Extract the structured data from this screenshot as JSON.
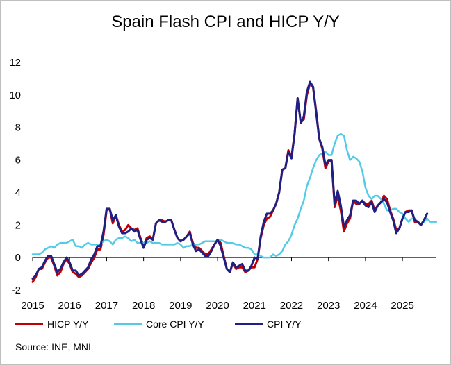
{
  "chart_data": {
    "type": "line",
    "title": "Spain Flash CPI and HICP Y/Y",
    "source": "Source: INE, MNI",
    "xlabel": "",
    "ylabel": "",
    "x_start": 2015.0,
    "x_step": 0.0833333,
    "xlim": [
      2015.0,
      2025.9
    ],
    "ylim": [
      -2,
      12
    ],
    "y_ticks": [
      "-2",
      "0",
      "2",
      "4",
      "6",
      "8",
      "10",
      "12"
    ],
    "x_ticks": [
      "2015",
      "2016",
      "2017",
      "2018",
      "2019",
      "2020",
      "2021",
      "2022",
      "2023",
      "2024",
      "2025"
    ],
    "grid": false,
    "legend_position": "bottom",
    "series": [
      {
        "name": "HICP Y/Y",
        "color": "#c00000",
        "values": [
          -1.5,
          -1.2,
          -0.7,
          -0.7,
          -0.3,
          0.0,
          0.0,
          -0.5,
          -1.1,
          -0.9,
          -0.4,
          -0.1,
          -0.4,
          -0.9,
          -1.0,
          -1.2,
          -1.1,
          -0.9,
          -0.7,
          -0.3,
          0.0,
          0.5,
          0.5,
          1.4,
          2.9,
          3.0,
          2.1,
          2.6,
          2.0,
          1.6,
          1.7,
          2.0,
          1.8,
          1.7,
          1.8,
          1.2,
          0.7,
          1.2,
          1.3,
          1.1,
          2.1,
          2.3,
          2.3,
          2.2,
          2.3,
          2.3,
          1.7,
          1.2,
          1.0,
          1.1,
          1.3,
          1.6,
          0.9,
          0.6,
          0.6,
          0.4,
          0.2,
          0.2,
          0.5,
          0.8,
          1.1,
          0.9,
          0.1,
          -0.7,
          -0.9,
          -0.3,
          -0.7,
          -0.6,
          -0.6,
          -0.9,
          -0.8,
          -0.6,
          -0.6,
          -0.1,
          1.2,
          2.0,
          2.4,
          2.5,
          2.9,
          3.3,
          4.0,
          5.4,
          5.5,
          6.6,
          6.2,
          7.6,
          9.8,
          8.3,
          8.5,
          10.0,
          10.7,
          10.5,
          9.0,
          7.3,
          6.7,
          5.5,
          5.9,
          6.0,
          3.1,
          3.8,
          2.9,
          1.6,
          2.1,
          2.4,
          3.5,
          3.3,
          3.3,
          3.5,
          3.3,
          3.3,
          3.5,
          2.9,
          3.2,
          3.4,
          3.8,
          3.6,
          2.9,
          2.4,
          1.7,
          1.8,
          2.4,
          2.8,
          2.9,
          2.9,
          2.2,
          2.2,
          2.0,
          2.3,
          2.7
        ]
      },
      {
        "name": "Core CPI Y/Y",
        "color": "#52cbe6",
        "values": [
          0.2,
          0.2,
          0.2,
          0.3,
          0.5,
          0.6,
          0.7,
          0.6,
          0.8,
          0.9,
          0.9,
          0.9,
          1.0,
          1.1,
          0.7,
          0.7,
          0.6,
          0.8,
          0.9,
          0.8,
          0.8,
          0.8,
          0.8,
          1.0,
          1.1,
          1.0,
          0.8,
          1.1,
          1.2,
          1.2,
          1.3,
          1.2,
          1.0,
          1.1,
          0.9,
          0.9,
          0.9,
          0.9,
          1.0,
          0.9,
          0.9,
          0.9,
          0.8,
          0.8,
          0.8,
          0.8,
          0.8,
          0.9,
          0.8,
          0.6,
          0.7,
          0.7,
          0.8,
          0.8,
          0.8,
          0.9,
          1.0,
          1.0,
          1.0,
          1.0,
          1.0,
          1.1,
          1.0,
          0.9,
          0.9,
          0.9,
          0.8,
          0.8,
          0.7,
          0.6,
          0.6,
          0.5,
          0.2,
          0.2,
          0.1,
          0.0,
          0.0,
          0.0,
          0.2,
          0.1,
          0.2,
          0.4,
          0.8,
          1.0,
          1.4,
          2.0,
          2.4,
          3.0,
          3.5,
          4.4,
          4.9,
          5.5,
          6.0,
          6.3,
          6.4,
          6.5,
          6.3,
          6.3,
          7.0,
          7.5,
          7.6,
          7.5,
          6.6,
          6.0,
          6.2,
          6.1,
          5.9,
          5.3,
          4.3,
          3.8,
          3.6,
          3.8,
          3.8,
          3.6,
          3.3,
          2.9,
          2.9,
          3.0,
          3.0,
          2.8,
          2.7,
          2.4,
          2.2,
          2.4,
          2.4,
          2.2,
          2.0,
          2.2,
          2.4,
          2.2,
          2.2,
          2.2
        ]
      },
      {
        "name": "CPI Y/Y",
        "color": "#1f1f84",
        "values": [
          -1.3,
          -1.1,
          -0.7,
          -0.6,
          -0.2,
          0.1,
          0.1,
          -0.4,
          -0.9,
          -0.7,
          -0.3,
          0.0,
          -0.3,
          -0.8,
          -0.8,
          -1.1,
          -1.0,
          -0.8,
          -0.6,
          -0.1,
          0.2,
          0.7,
          0.7,
          1.6,
          3.0,
          3.0,
          2.3,
          2.6,
          1.9,
          1.5,
          1.5,
          1.6,
          1.8,
          1.6,
          1.7,
          1.1,
          0.6,
          1.1,
          1.2,
          1.1,
          2.1,
          2.3,
          2.2,
          2.2,
          2.3,
          2.3,
          1.7,
          1.2,
          1.0,
          1.1,
          1.3,
          1.5,
          0.8,
          0.4,
          0.5,
          0.3,
          0.1,
          0.1,
          0.4,
          0.8,
          1.1,
          0.7,
          0.0,
          -0.7,
          -0.9,
          -0.3,
          -0.6,
          -0.5,
          -0.4,
          -0.8,
          -0.8,
          -0.5,
          0.0,
          -0.1,
          1.3,
          2.2,
          2.7,
          2.7,
          2.9,
          3.3,
          4.0,
          5.4,
          5.5,
          6.5,
          6.1,
          7.6,
          9.8,
          8.3,
          8.7,
          10.2,
          10.8,
          10.5,
          8.9,
          7.3,
          6.8,
          5.7,
          6.0,
          6.0,
          3.3,
          4.1,
          3.2,
          1.9,
          2.3,
          2.6,
          3.5,
          3.5,
          3.3,
          3.5,
          3.2,
          3.1,
          3.4,
          2.8,
          3.2,
          3.4,
          3.6,
          3.4,
          2.8,
          2.3,
          1.5,
          1.8,
          2.4,
          2.8,
          2.8,
          2.9,
          2.3,
          2.2,
          2.0,
          2.3,
          2.7
        ]
      }
    ]
  }
}
